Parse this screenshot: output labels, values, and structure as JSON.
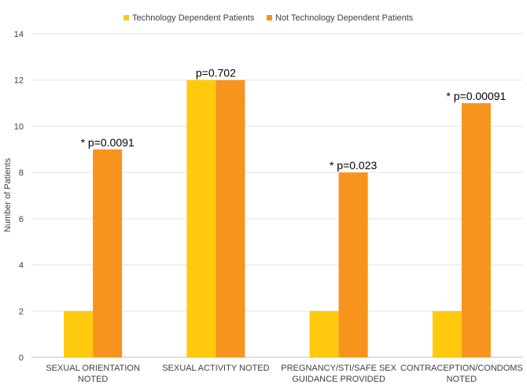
{
  "chart_data": {
    "type": "bar",
    "categories": [
      [
        "SEXUAL ORIENTATION",
        "NOTED"
      ],
      [
        "SEXUAL ACTIVITY NOTED"
      ],
      [
        "PREGNANCY/STI/SAFE SEX",
        "GUIDANCE PROVIDED"
      ],
      [
        "CONTRACEPTION/CONDOMS",
        "NOTED"
      ]
    ],
    "series": [
      {
        "name": "Technology Dependent Patients",
        "color": "#FFC90E",
        "values": [
          2,
          12,
          2,
          2
        ]
      },
      {
        "name": "Not Technology Dependent Patients",
        "color": "#F7941D",
        "values": [
          9,
          12,
          8,
          11
        ]
      }
    ],
    "annotations": [
      "* p=0.0091",
      "p=0.702",
      "* p=0.023",
      "* p=0.00091"
    ],
    "ylabel": "Number of Patients",
    "xlabel": "",
    "ylim": [
      0,
      14
    ],
    "yticks": [
      0,
      2,
      4,
      6,
      8,
      10,
      12,
      14
    ],
    "grid": true,
    "legend_position": "top-center"
  }
}
